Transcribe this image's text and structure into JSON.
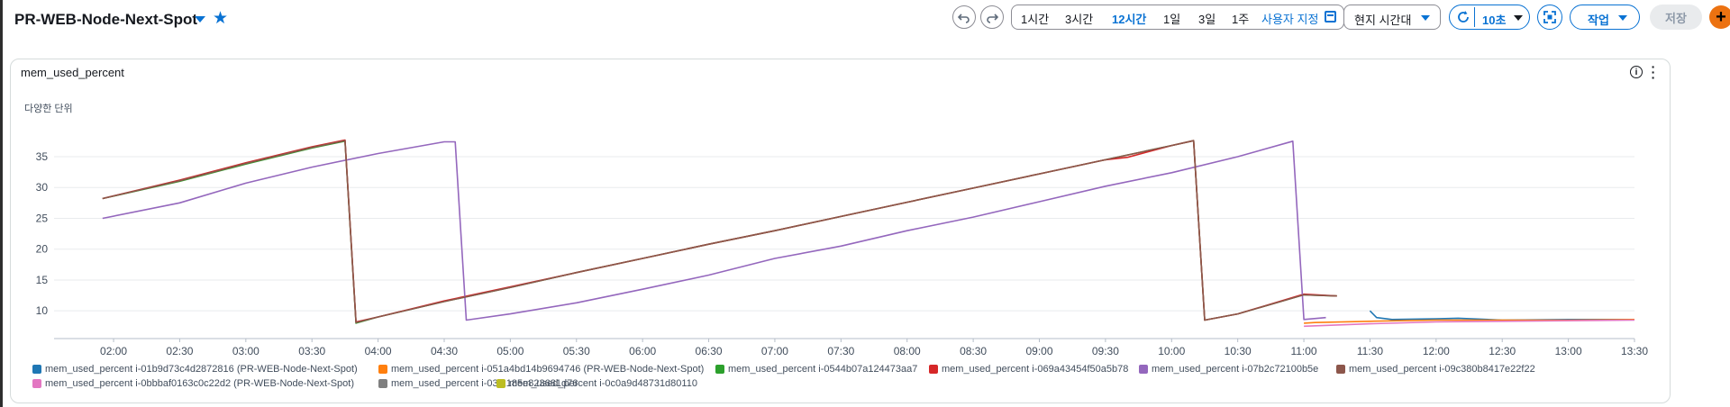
{
  "dashboard": {
    "title": "PR-WEB-Node-Next-Spot"
  },
  "toolbar": {
    "ranges": [
      "1시간",
      "3시간",
      "12시간",
      "1일",
      "3일",
      "1주"
    ],
    "active_range": "12시간",
    "custom_label": "사용자 지정",
    "timezone_label": "현지 시간대",
    "refresh_label": "10초",
    "actions_label": "작업",
    "save_label": "저장",
    "add_label": "+"
  },
  "widget": {
    "title": "mem_used_percent",
    "unit_label": "다양한 단위"
  },
  "icons": {
    "title_caret": "caret-down-icon",
    "favorite": "star-icon",
    "undo": "undo-icon",
    "redo": "redo-icon",
    "calendar": "calendar-icon",
    "refresh": "refresh-icon",
    "fullscreen": "fullscreen-icon",
    "info": "info-icon",
    "kebab": "more-vertical-icon"
  },
  "colors": {
    "accent": "#0972d3",
    "add_button": "#ec7211"
  },
  "chart_data": {
    "type": "line",
    "title": "mem_used_percent",
    "ylabel": "다양한 단위",
    "x_ticks": [
      "02:00",
      "02:30",
      "03:00",
      "03:30",
      "04:00",
      "04:30",
      "05:00",
      "05:30",
      "06:00",
      "06:30",
      "07:00",
      "07:30",
      "08:00",
      "08:30",
      "09:00",
      "09:30",
      "10:00",
      "10:30",
      "11:00",
      "11:30",
      "12:00",
      "12:30",
      "13:00",
      "13:30"
    ],
    "y_ticks": [
      10,
      15,
      20,
      25,
      30,
      35
    ],
    "xlim_hours": [
      1.55,
      13.5
    ],
    "ylim": [
      5.5,
      38.5
    ],
    "grid": "horizontal",
    "legend_position": "bottom",
    "series": [
      {
        "name": "mem_used_percent i-01b9d73c4d2872816 (PR-WEB-Node-Next-Spot)",
        "color": "#1f77b4",
        "x": [
          "11:30",
          "11:33",
          "11:40",
          "12:00",
          "12:10",
          "12:30",
          "13:00",
          "13:30"
        ],
        "y": [
          10.0,
          8.9,
          8.6,
          8.7,
          8.8,
          8.5,
          8.6,
          8.6
        ]
      },
      {
        "name": "mem_used_percent i-051a4bd14b9694746 (PR-WEB-Node-Next-Spot)",
        "color": "#ff7f0e",
        "x": [
          "11:00",
          "11:05",
          "11:30",
          "12:00",
          "12:30",
          "13:00",
          "13:30"
        ],
        "y": [
          8.0,
          8.1,
          8.3,
          8.5,
          8.5,
          8.5,
          8.6
        ]
      },
      {
        "name": "mem_used_percent i-0544b07a124473aa7",
        "color": "#2ca02c",
        "x": [
          "01:55",
          "02:30",
          "03:00",
          "03:30",
          "03:45",
          "03:50",
          "04:00",
          "04:30",
          "05:00",
          "05:30",
          "06:00",
          "06:30",
          "07:00",
          "07:30",
          "08:00",
          "08:30",
          "09:00",
          "09:30",
          "10:00",
          "10:10",
          "10:15",
          "10:30",
          "11:00",
          "11:15"
        ],
        "y": [
          28.2,
          31.0,
          33.8,
          36.4,
          37.5,
          8.0,
          9.0,
          11.5,
          13.8,
          16.2,
          18.5,
          20.8,
          23.0,
          25.3,
          27.6,
          29.9,
          32.2,
          34.5,
          36.8,
          37.6,
          8.5,
          9.5,
          12.6,
          12.4
        ]
      },
      {
        "name": "mem_used_percent i-069a43454f50a5b78",
        "color": "#d62728",
        "x": [
          "01:55",
          "02:30",
          "03:00",
          "03:30",
          "03:45",
          "03:50",
          "04:00",
          "04:30",
          "05:00",
          "05:30",
          "06:00",
          "06:30",
          "07:00",
          "07:30",
          "08:00",
          "08:30",
          "09:00",
          "09:30",
          "09:40",
          "10:00",
          "10:10",
          "10:15",
          "10:30",
          "11:00",
          "11:15"
        ],
        "y": [
          28.2,
          31.2,
          34.0,
          36.6,
          37.7,
          8.2,
          9.0,
          11.6,
          13.9,
          16.2,
          18.5,
          20.8,
          23.0,
          25.3,
          27.6,
          29.9,
          32.2,
          34.5,
          34.9,
          36.8,
          37.6,
          8.5,
          9.5,
          12.7,
          12.4
        ]
      },
      {
        "name": "mem_used_percent i-07b2c72100b5e",
        "color": "#9467bd",
        "x": [
          "01:55",
          "02:30",
          "03:00",
          "03:30",
          "04:00",
          "04:30",
          "04:35",
          "04:40",
          "05:00",
          "05:30",
          "06:00",
          "06:30",
          "07:00",
          "07:30",
          "08:00",
          "08:30",
          "09:00",
          "09:30",
          "10:00",
          "10:30",
          "10:55",
          "11:00",
          "11:10"
        ],
        "y": [
          25.0,
          27.5,
          30.7,
          33.3,
          35.5,
          37.4,
          37.4,
          8.5,
          9.5,
          11.3,
          13.5,
          15.8,
          18.5,
          20.5,
          23.0,
          25.2,
          27.7,
          30.2,
          32.4,
          35.0,
          37.5,
          8.6,
          8.9
        ]
      },
      {
        "name": "mem_used_percent i-09c380b8417e22f22",
        "color": "#8c564b",
        "x": [
          "01:55",
          "02:30",
          "03:00",
          "03:30",
          "03:45",
          "03:50",
          "04:00",
          "04:30",
          "05:00",
          "05:30",
          "06:00",
          "06:30",
          "07:00",
          "07:30",
          "08:00",
          "08:30",
          "09:00",
          "09:30",
          "10:00",
          "10:10",
          "10:15",
          "10:30",
          "11:00",
          "11:15"
        ],
        "y": [
          28.2,
          31.1,
          33.9,
          36.5,
          37.6,
          8.1,
          9.0,
          11.5,
          13.8,
          16.2,
          18.5,
          20.8,
          23.0,
          25.3,
          27.6,
          29.9,
          32.2,
          34.5,
          36.8,
          37.6,
          8.5,
          9.5,
          12.6,
          12.4
        ]
      },
      {
        "name": "mem_used_percent i-0bbbaf0163c0c22d2 (PR-WEB-Node-Next-Spot)",
        "color": "#e377c2",
        "x": [
          "11:00",
          "11:30",
          "12:00",
          "13:30"
        ],
        "y": [
          7.5,
          7.9,
          8.2,
          8.5
        ]
      },
      {
        "name": "mem_used_percent i-03f2185e823681d76",
        "color": "#7f7f7f",
        "x": [],
        "y": []
      },
      {
        "name": "mem_used_percent i-0c0a9d48731d80110",
        "color": "#bcbd22",
        "x": [],
        "y": []
      }
    ]
  }
}
